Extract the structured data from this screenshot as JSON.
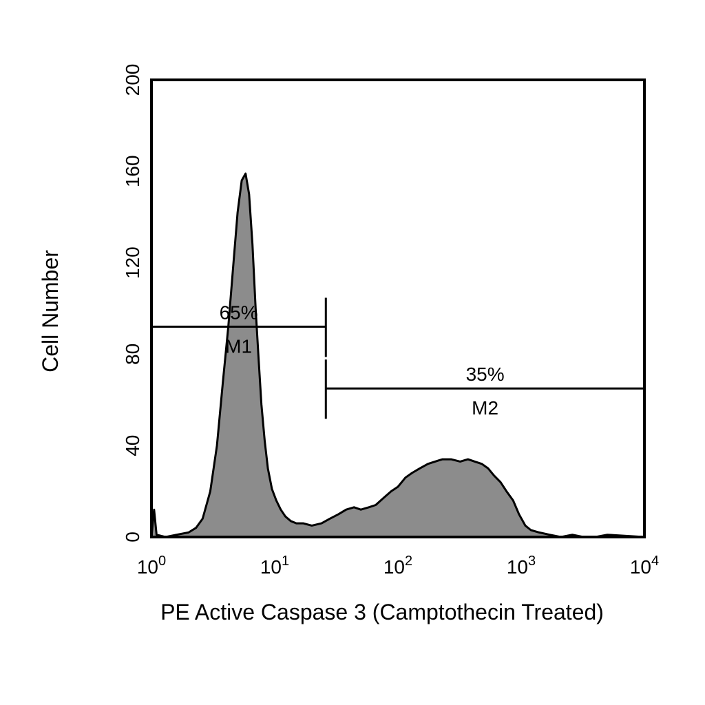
{
  "chart_data": {
    "type": "area",
    "title": "",
    "xlabel": "PE Active Caspase 3 (Camptothecin Treated)",
    "ylabel": "Cell Number",
    "x_scale": "log",
    "xlim": [
      1,
      10000
    ],
    "ylim": [
      0,
      200
    ],
    "x_ticks": [
      {
        "value": 1,
        "base": "10",
        "exp": "0"
      },
      {
        "value": 10,
        "base": "10",
        "exp": "1"
      },
      {
        "value": 100,
        "base": "10",
        "exp": "2"
      },
      {
        "value": 1000,
        "base": "10",
        "exp": "3"
      },
      {
        "value": 10000,
        "base": "10",
        "exp": "4"
      }
    ],
    "y_ticks": [
      "0",
      "40",
      "80",
      "120",
      "160",
      "200"
    ],
    "grid": false,
    "colors": {
      "fill": "#8c8c8c",
      "outline": "#000000",
      "frame": "#000000"
    },
    "series": [
      {
        "x": [
          1.0,
          1.05,
          1.1,
          1.3,
          1.6,
          2.0,
          2.3,
          2.6,
          3.0,
          3.4,
          3.8,
          4.2,
          4.6,
          5.0,
          5.4,
          5.8,
          6.2,
          6.6,
          7.0,
          7.4,
          7.8,
          8.3,
          8.8,
          9.5,
          10.3,
          11.2,
          12.2,
          13.5,
          15,
          17,
          20,
          24,
          28,
          33,
          38,
          44,
          50,
          58,
          66,
          76,
          88,
          100,
          115,
          130,
          150,
          175,
          200,
          230,
          270,
          320,
          370,
          420,
          480,
          540,
          600,
          680,
          760,
          860,
          960,
          1080,
          1200,
          1400,
          1700,
          2100,
          2600,
          3200,
          4000,
          5000,
          10000
        ],
        "values": [
          0,
          12,
          1,
          0,
          1,
          2,
          4,
          8,
          20,
          40,
          68,
          92,
          118,
          142,
          156,
          159,
          150,
          128,
          100,
          78,
          58,
          42,
          30,
          21,
          16,
          12,
          9,
          7,
          6,
          6,
          5,
          6,
          8,
          10,
          12,
          13,
          12,
          13,
          14,
          17,
          20,
          22,
          26,
          28,
          30,
          32,
          33,
          34,
          34,
          33,
          34,
          33,
          32,
          30,
          27,
          24,
          20,
          16,
          10,
          5,
          3,
          2,
          1,
          0,
          1,
          0,
          0,
          1,
          0
        ]
      }
    ],
    "markers": [
      {
        "id": "M1",
        "label": "M1",
        "percent": "65%",
        "x_start": 1,
        "x_end": 26,
        "y": 92
      },
      {
        "id": "M2",
        "label": "M2",
        "percent": "35%",
        "x_start": 26,
        "x_end": 10000,
        "y": 65
      }
    ]
  }
}
